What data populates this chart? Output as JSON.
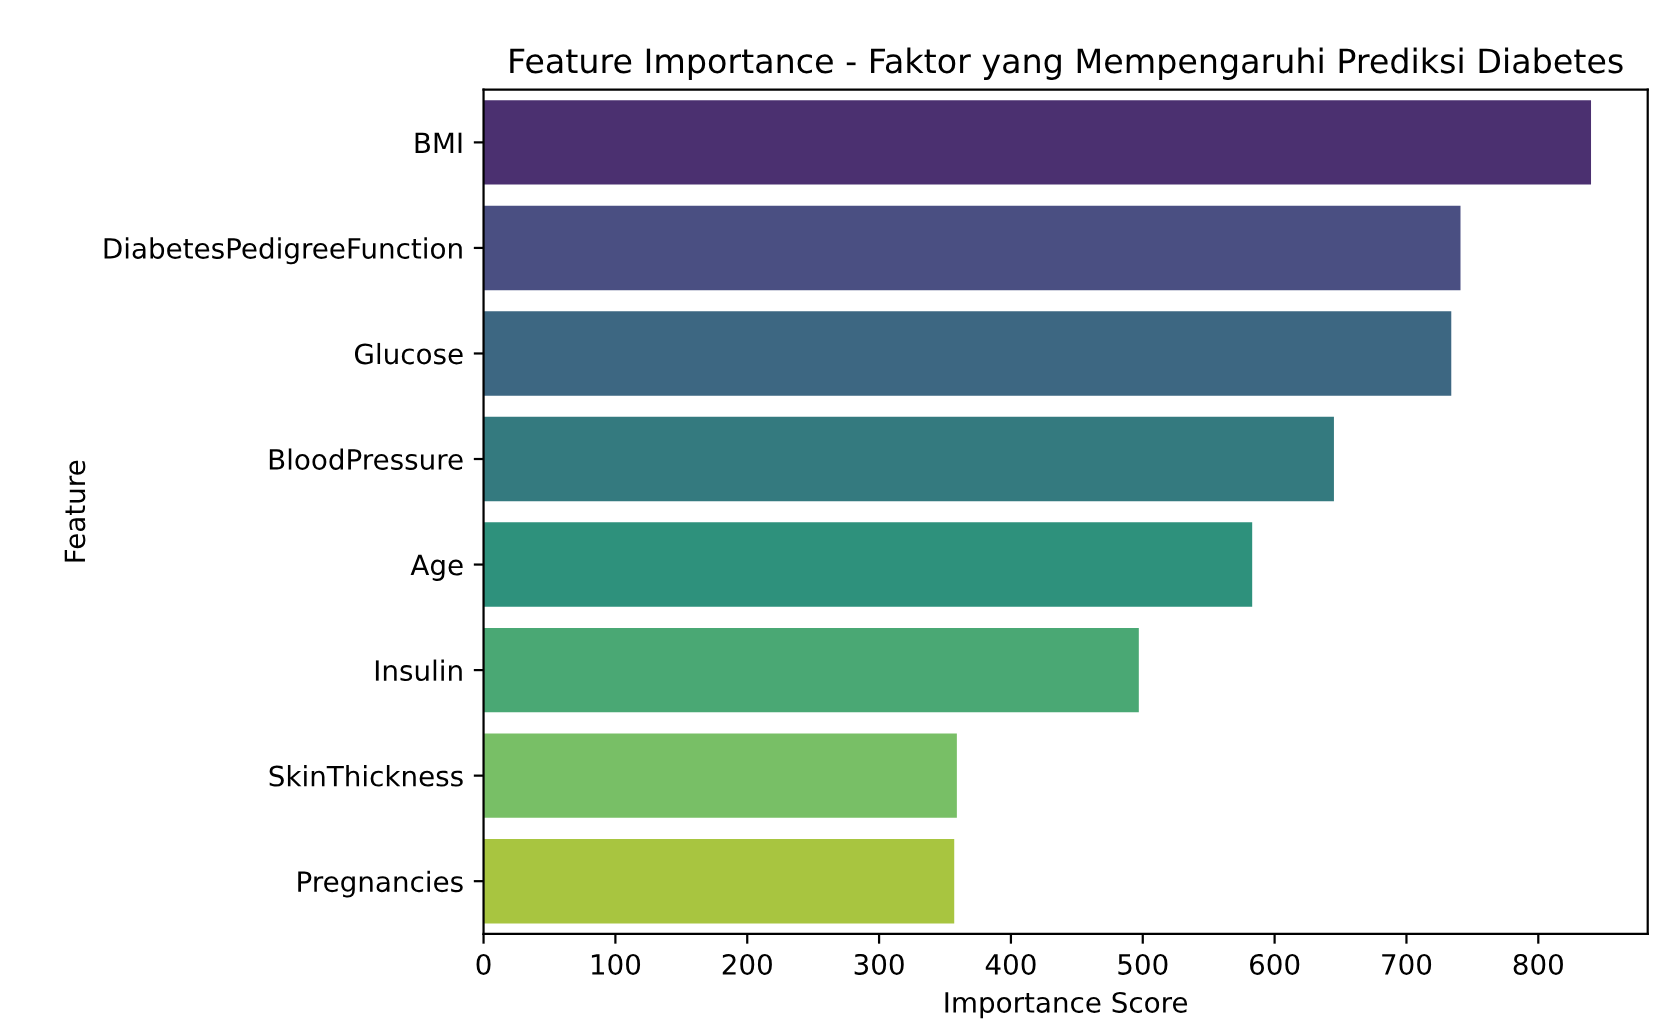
{
  "chart_data": {
    "type": "bar",
    "orientation": "horizontal",
    "title": "Feature Importance - Faktor yang Mempengaruhi Prediksi Diabetes",
    "xlabel": "Importance Score",
    "ylabel": "Feature",
    "categories": [
      "BMI",
      "DiabetesPedigreeFunction",
      "Glucose",
      "BloodPressure",
      "Age",
      "Insulin",
      "SkinThickness",
      "Pregnancies"
    ],
    "values": [
      840,
      741,
      734,
      645,
      583,
      497,
      359,
      357
    ],
    "colors": [
      "#4b3070",
      "#4a4f82",
      "#3d6782",
      "#347a7f",
      "#2e917c",
      "#4aa874",
      "#78bf66",
      "#a8c540"
    ],
    "xlim": [
      0,
      883
    ],
    "xticks": [
      0,
      100,
      200,
      300,
      400,
      500,
      600,
      700,
      800
    ],
    "grid": false,
    "legend": false
  }
}
